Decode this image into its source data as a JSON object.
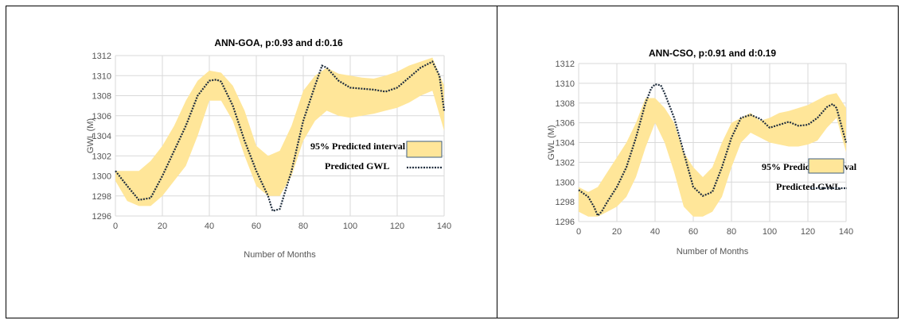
{
  "chart_data": [
    {
      "type": "line",
      "title": "ANN-GOA, p:0.93 and d:0.16",
      "xlabel": "Number of Months",
      "ylabel": "GWL (M)",
      "xlim": [
        0,
        140
      ],
      "ylim": [
        1296,
        1312
      ],
      "xticks": [
        0,
        20,
        40,
        60,
        80,
        100,
        120,
        140
      ],
      "yticks": [
        1296,
        1298,
        1300,
        1302,
        1304,
        1306,
        1308,
        1310,
        1312
      ],
      "grid": true,
      "legend_position": "center-right",
      "colors": {
        "band": "#ffe699",
        "line": "#1f2d3d"
      },
      "series": [
        {
          "name": "95% Predicted interval",
          "kind": "band",
          "x": [
            0,
            5,
            10,
            15,
            20,
            25,
            30,
            35,
            40,
            45,
            50,
            55,
            60,
            65,
            70,
            75,
            80,
            85,
            90,
            95,
            100,
            105,
            110,
            115,
            120,
            125,
            130,
            135,
            140
          ],
          "lower": [
            1299.5,
            1297.5,
            1297.0,
            1297.0,
            1298.0,
            1299.5,
            1301.0,
            1304.0,
            1307.5,
            1307.5,
            1305.5,
            1302.0,
            1299.0,
            1298.0,
            1298.0,
            1300.0,
            1303.5,
            1305.5,
            1306.5,
            1306.0,
            1305.8,
            1306.0,
            1306.2,
            1306.5,
            1306.8,
            1307.3,
            1308.0,
            1308.5,
            1304.5
          ],
          "upper": [
            1300.5,
            1300.5,
            1300.5,
            1301.5,
            1303.0,
            1305.0,
            1307.5,
            1309.5,
            1310.5,
            1310.3,
            1309.0,
            1306.5,
            1303.0,
            1302.0,
            1302.5,
            1305.0,
            1308.5,
            1310.0,
            1310.8,
            1310.2,
            1310.0,
            1309.8,
            1309.7,
            1310.0,
            1310.4,
            1311.0,
            1311.4,
            1311.8,
            1309.0
          ]
        },
        {
          "name": "Predicted GWL",
          "kind": "line",
          "x": [
            0,
            5,
            10,
            15,
            20,
            25,
            30,
            35,
            40,
            43,
            45,
            50,
            55,
            60,
            65,
            67,
            70,
            75,
            80,
            85,
            88,
            90,
            95,
            100,
            105,
            110,
            115,
            120,
            125,
            130,
            135,
            138,
            140
          ],
          "values": [
            1300.5,
            1299.0,
            1297.6,
            1297.8,
            1300.0,
            1302.5,
            1305.0,
            1308.0,
            1309.5,
            1309.6,
            1309.4,
            1307.0,
            1303.5,
            1300.5,
            1298.0,
            1296.5,
            1296.7,
            1300.5,
            1305.5,
            1309.0,
            1311.0,
            1310.8,
            1309.5,
            1308.8,
            1308.7,
            1308.6,
            1308.4,
            1308.8,
            1309.8,
            1310.8,
            1311.4,
            1310.0,
            1306.5
          ]
        }
      ]
    },
    {
      "type": "line",
      "title": "ANN-CSO, p:0.91 and d:0.19",
      "xlabel": "Number of Months",
      "ylabel": "GWL (M)",
      "xlim": [
        0,
        140
      ],
      "ylim": [
        1296,
        1312
      ],
      "xticks": [
        0,
        20,
        40,
        60,
        80,
        100,
        120,
        140
      ],
      "yticks": [
        1296,
        1298,
        1300,
        1302,
        1304,
        1306,
        1308,
        1310,
        1312
      ],
      "grid": true,
      "legend_position": "center-right",
      "colors": {
        "band": "#ffe699",
        "line": "#1f2d3d"
      },
      "series": [
        {
          "name": "95% Predicted interval",
          "kind": "band",
          "x": [
            0,
            5,
            10,
            15,
            20,
            25,
            30,
            35,
            40,
            45,
            50,
            55,
            60,
            65,
            70,
            75,
            80,
            85,
            90,
            95,
            100,
            105,
            110,
            115,
            120,
            125,
            130,
            135,
            140
          ],
          "lower": [
            1297.0,
            1296.5,
            1296.5,
            1297.0,
            1297.5,
            1298.5,
            1300.5,
            1303.5,
            1306.0,
            1304.0,
            1301.0,
            1297.5,
            1296.5,
            1296.5,
            1297.0,
            1298.5,
            1301.5,
            1304.0,
            1305.0,
            1304.5,
            1304.0,
            1303.8,
            1303.6,
            1303.6,
            1303.8,
            1304.2,
            1305.5,
            1306.5,
            1303.0
          ],
          "upper": [
            1299.5,
            1299.0,
            1299.5,
            1301.0,
            1302.5,
            1304.0,
            1306.0,
            1308.5,
            1308.5,
            1307.5,
            1306.0,
            1303.0,
            1301.5,
            1300.5,
            1301.5,
            1304.0,
            1306.0,
            1306.5,
            1307.0,
            1306.2,
            1306.5,
            1307.0,
            1307.2,
            1307.5,
            1307.8,
            1308.3,
            1308.8,
            1309.0,
            1307.5
          ]
        },
        {
          "name": "Predicted GWL",
          "kind": "line",
          "x": [
            0,
            5,
            8,
            10,
            12,
            15,
            20,
            25,
            30,
            35,
            38,
            40,
            43,
            45,
            50,
            55,
            60,
            65,
            70,
            75,
            80,
            85,
            90,
            95,
            100,
            105,
            110,
            115,
            120,
            125,
            130,
            133,
            135,
            140
          ],
          "values": [
            1299.2,
            1298.5,
            1297.5,
            1296.6,
            1297.0,
            1298.0,
            1299.5,
            1301.5,
            1304.5,
            1308.0,
            1309.5,
            1309.9,
            1309.8,
            1309.0,
            1306.5,
            1303.0,
            1299.5,
            1298.6,
            1299.0,
            1301.5,
            1304.5,
            1306.5,
            1306.8,
            1306.4,
            1305.5,
            1305.8,
            1306.1,
            1305.7,
            1305.8,
            1306.5,
            1307.6,
            1307.9,
            1307.5,
            1304.0
          ]
        }
      ]
    }
  ]
}
